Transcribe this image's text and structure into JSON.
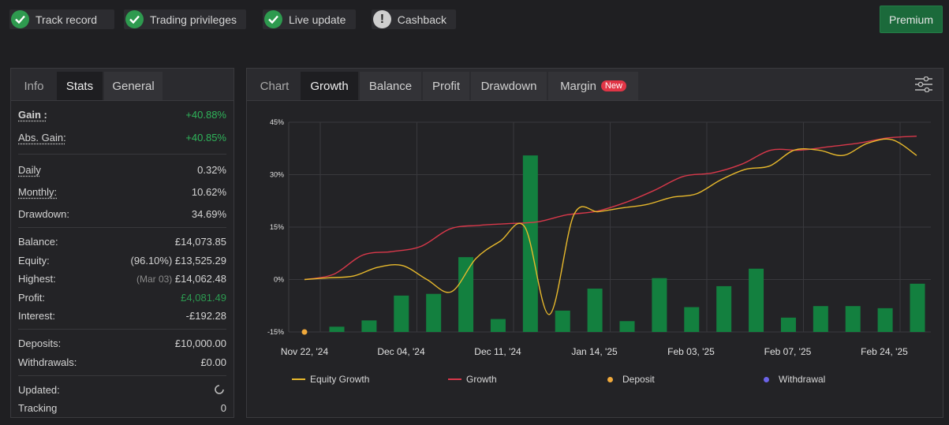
{
  "badges": [
    {
      "label": "Track record",
      "status": "ok"
    },
    {
      "label": "Trading privileges",
      "status": "ok"
    },
    {
      "label": "Live update",
      "status": "ok"
    },
    {
      "label": "Cashback",
      "status": "warn",
      "glyph": "!"
    }
  ],
  "premium_label": "Premium",
  "left_tabs": {
    "info": "Info",
    "stats": "Stats",
    "general": "General"
  },
  "stats": {
    "gain": {
      "label": "Gain :",
      "value": "+40.88%"
    },
    "abs_gain": {
      "label": "Abs. Gain:",
      "value": "+40.85%"
    },
    "daily": {
      "label": "Daily",
      "value": "0.32%"
    },
    "monthly": {
      "label": "Monthly:",
      "value": "10.62%"
    },
    "drawdown": {
      "label": "Drawdown:",
      "value": "34.69%"
    },
    "balance": {
      "label": "Balance:",
      "value": "£14,073.85"
    },
    "equity": {
      "label": "Equity:",
      "prefix": "(96.10%)",
      "value": "£13,525.29"
    },
    "highest": {
      "label": "Highest:",
      "prefix": "(Mar 03)",
      "value": "£14,062.48"
    },
    "profit": {
      "label": "Profit:",
      "value": "£4,081.49"
    },
    "interest": {
      "label": "Interest:",
      "value": "-£192.28"
    },
    "deposits": {
      "label": "Deposits:",
      "value": "£10,000.00"
    },
    "withdrawals": {
      "label": "Withdrawals:",
      "value": "£0.00"
    },
    "updated": {
      "label": "Updated:"
    },
    "tracking": {
      "label": "Tracking",
      "value": "0"
    }
  },
  "chart_tabs": {
    "chart": "Chart",
    "growth": "Growth",
    "balance": "Balance",
    "profit": "Profit",
    "drawdown": "Drawdown",
    "margin": "Margin",
    "new_tag": "New"
  },
  "colors": {
    "equity": "#e8b92c",
    "growth": "#d8384a",
    "bars": "#13803f",
    "deposit": "#f0a93b",
    "withdrawal": "#6b63e8",
    "positive": "#2fb45a"
  },
  "chart_data": {
    "type": "bar+line",
    "ylim": [
      -15,
      45
    ],
    "yticks": [
      -15,
      0,
      15,
      30,
      45
    ],
    "ytick_labels": [
      "-15%",
      "0%",
      "15%",
      "30%",
      "45%"
    ],
    "xtick_labels": [
      "Nov 22, '24",
      "Dec 04, '24",
      "Dec 11, '24",
      "Jan 14, '25",
      "Feb 03, '25",
      "Feb 07, '25",
      "Feb 24, '25"
    ],
    "bars": [
      -13.5,
      -11.7,
      -4.6,
      -4.1,
      6.4,
      -11.3,
      35.5,
      -8.9,
      -2.6,
      -11.9,
      0.4,
      -7.9,
      -1.9,
      3.1,
      -10.9,
      -7.6,
      -7.6,
      -8.2,
      -1.2
    ],
    "series": [
      {
        "name": "Equity Growth",
        "values": [
          0,
          0.5,
          1.0,
          3.5,
          4.0,
          0,
          -3.5,
          6.0,
          11,
          15,
          -10,
          18.5,
          19.4,
          20.5,
          21.5,
          23.5,
          24.5,
          28.5,
          31.5,
          32.5,
          37.0,
          37.0,
          35.5,
          39.0,
          40.0,
          35.5
        ]
      },
      {
        "name": "Growth",
        "values": [
          0,
          1.5,
          7.0,
          8.0,
          9.5,
          14.5,
          15.5,
          16.0,
          16.5,
          18.5,
          19.5,
          22.0,
          25.5,
          29.5,
          30.5,
          33.0,
          37.0,
          37.0,
          38.0,
          39.0,
          40.5,
          41.0
        ]
      }
    ],
    "deposit_points": [
      {
        "x": 0,
        "y": -15
      }
    ],
    "legend": [
      "Equity Growth",
      "Growth",
      "Deposit",
      "Withdrawal"
    ]
  }
}
